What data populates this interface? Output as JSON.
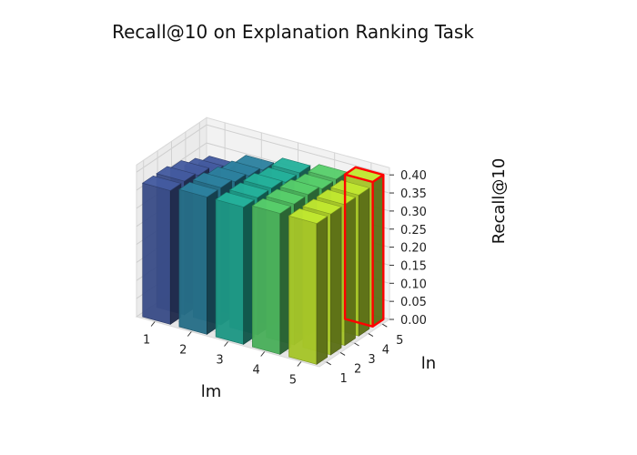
{
  "chart_data": {
    "type": "bar3d",
    "title": "Recall@10 on Explanation Ranking Task",
    "xlabel": "lm",
    "ylabel": "ln",
    "zlabel": "Recall@10",
    "x_ticks": [
      "1",
      "2",
      "3",
      "4",
      "5"
    ],
    "y_ticks": [
      "1",
      "2",
      "3",
      "4",
      "5"
    ],
    "z_ticks": [
      "0.00",
      "0.05",
      "0.10",
      "0.15",
      "0.20",
      "0.25",
      "0.30",
      "0.35",
      "0.40"
    ],
    "zlim": [
      0,
      0.42
    ],
    "grid": true,
    "colormap": [
      "#3b4f8a",
      "#27708a",
      "#1f9a87",
      "#4cb35d",
      "#a8c92a"
    ],
    "values": [
      [
        0.37,
        0.38,
        0.38,
        0.39,
        0.39
      ],
      [
        0.37,
        0.38,
        0.38,
        0.39,
        0.39
      ],
      [
        0.36,
        0.37,
        0.38,
        0.39,
        0.39
      ],
      [
        0.34,
        0.36,
        0.37,
        0.38,
        0.39
      ],
      [
        0.32,
        0.35,
        0.37,
        0.38,
        0.4
      ]
    ],
    "highlight": {
      "lm": 5,
      "ln": 5,
      "color": "#ff0000"
    }
  }
}
